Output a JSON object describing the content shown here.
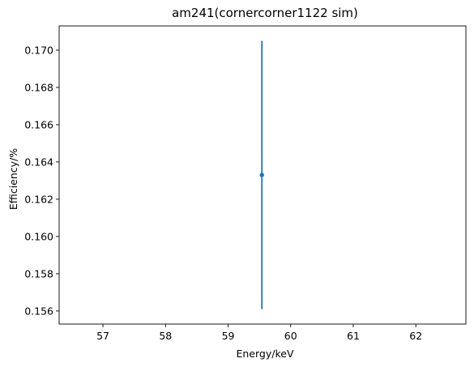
{
  "chart_data": {
    "type": "scatter",
    "title": "am241(cornercorner1122 sim)",
    "xlabel": "Energy/keV",
    "ylabel": "Efficiency/%",
    "xlim": [
      56.3,
      62.8
    ],
    "ylim": [
      0.1553,
      0.1713
    ],
    "x_ticks": [
      57,
      58,
      59,
      60,
      61,
      62
    ],
    "y_ticks": [
      0.156,
      0.158,
      0.16,
      0.162,
      0.164,
      0.166,
      0.168,
      0.17
    ],
    "y_tick_labels": [
      "0.156",
      "0.158",
      "0.160",
      "0.162",
      "0.164",
      "0.166",
      "0.168",
      "0.170"
    ],
    "grid": false,
    "series": [
      {
        "points": [
          {
            "x": 59.54,
            "y": 0.1633,
            "yerr_low": 0.1561,
            "yerr_high": 0.1705
          }
        ],
        "color": "#1f77b4"
      }
    ]
  }
}
